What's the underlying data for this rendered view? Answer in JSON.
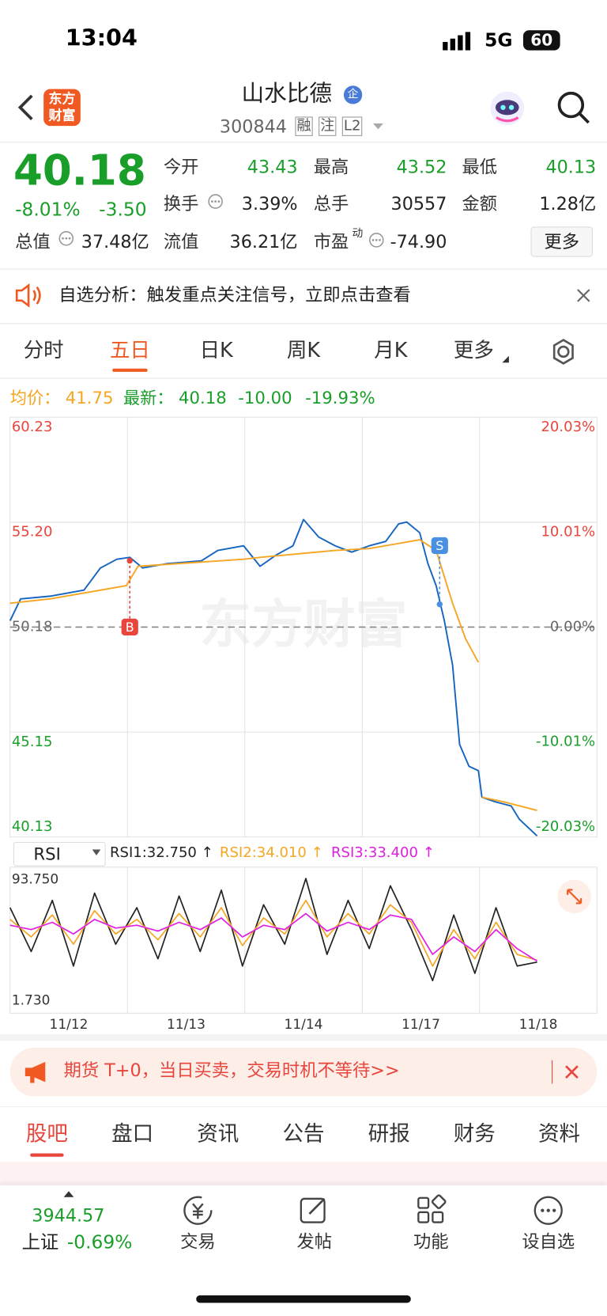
{
  "status_bar": {
    "time": "13:04",
    "network": "5G",
    "battery": "60"
  },
  "header": {
    "logo": "东方财富",
    "title": "山水比德",
    "badge": "企",
    "code": "300844",
    "tags": [
      "融",
      "注",
      "L2"
    ]
  },
  "quote": {
    "price": "40.18",
    "change_pct": "-8.01%",
    "change": "-3.50",
    "open": {
      "label": "今开",
      "value": "43.43"
    },
    "high": {
      "label": "最高",
      "value": "43.52"
    },
    "low": {
      "label": "最低",
      "value": "40.13"
    },
    "turnover": {
      "label": "换手",
      "value": "3.39%"
    },
    "volume": {
      "label": "总手",
      "value": "30557"
    },
    "amount": {
      "label": "金额",
      "value": "1.28亿"
    },
    "market_cap": {
      "label": "总值",
      "value": "37.48亿"
    },
    "float_cap": {
      "label": "流值",
      "value": "36.21亿"
    },
    "pe": {
      "label": "市盈",
      "sup": "动",
      "value": "-74.90"
    },
    "more": "更多"
  },
  "notice": {
    "text": "自选分析：触发重点关注信号，立即点击查看"
  },
  "tabs": [
    "分时",
    "五日",
    "日K",
    "周K",
    "月K",
    "更多"
  ],
  "summary": {
    "avg_label": "均价：",
    "avg": "41.75",
    "latest_label": "最新：",
    "latest": "40.18",
    "change": "-10.00",
    "change_pct": "-19.93%"
  },
  "watermark": "东方财富",
  "chart_data": [
    {
      "type": "line",
      "xlim": [
        0,
        5
      ],
      "ylim": [
        40.13,
        60.23
      ],
      "yticks": [
        60.23,
        {
          "value": 55.2,
          "label": "55.20"
        },
        50.18,
        45.15,
        40.13
      ],
      "y2lim": [
        -20.03,
        20.03
      ],
      "y2ticks": [
        {
          "value": 20.03,
          "label": "20.03%"
        },
        {
          "value": 10.01,
          "label": "10.01%"
        },
        {
          "value": 0,
          "label": "0.00%"
        },
        {
          "value": -10.01,
          "label": "-10.01%"
        },
        {
          "value": -20.03,
          "label": "-20.03%"
        }
      ],
      "series": [
        {
          "color": "#1565c0",
          "x": [
            0,
            0.09,
            0.34,
            0.63,
            0.77,
            0.91,
            1.02,
            1.13,
            1.34,
            1.63,
            1.77,
            1.99,
            2.13,
            2.27,
            2.41,
            2.5,
            2.63,
            2.77,
            2.91,
            3.06,
            3.2,
            3.31,
            3.38,
            3.49,
            3.56,
            3.63,
            3.7,
            3.77,
            3.83,
            3.91,
            3.99,
            4.02,
            4.13,
            4.27,
            4.34,
            4.49
          ],
          "values": [
            50.48,
            51.53,
            51.66,
            51.95,
            53.01,
            53.43,
            53.52,
            53.01,
            53.22,
            53.35,
            53.85,
            54.07,
            53.09,
            53.64,
            54.07,
            55.33,
            54.49,
            54.07,
            53.77,
            54.07,
            54.28,
            55.12,
            55.21,
            54.7,
            53.22,
            52.16,
            50.48,
            48.36,
            44.56,
            43.51,
            43.3,
            42.03,
            41.82,
            41.61,
            40.97,
            40.18
          ]
        },
        {
          "color": "#f5a623",
          "x": [
            0,
            0.34,
            0.99,
            1.09,
            1.99,
            2.13,
            2.77,
            3.06,
            3.49,
            3.63,
            3.77,
            3.88,
            3.99,
            4,
            4.02,
            4.2,
            4.49
          ],
          "values": [
            51.32,
            51.53,
            52.16,
            53.09,
            53.43,
            53.52,
            53.85,
            53.94,
            54.36,
            53.85,
            51.32,
            49.63,
            48.49,
            null,
            42.03,
            41.82,
            41.4
          ]
        }
      ],
      "annotations": [
        {
          "text": "B",
          "x": 1.02,
          "y": 53.36,
          "label_y": 50.18
        },
        {
          "text": "S",
          "x": 3.66,
          "y": 51.27,
          "label_y": 54.08
        }
      ]
    },
    {
      "type": "line",
      "xlim": [
        0,
        5
      ],
      "ylim": [
        1.73,
        93.75
      ],
      "yticks": [
        {
          "value": 93.75,
          "label": "93.750"
        },
        {
          "value": 1.73,
          "label": "1.730"
        }
      ],
      "xticks": [
        {
          "value": 0.5,
          "label": "11/12"
        },
        {
          "value": 1.5,
          "label": "11/13"
        },
        {
          "value": 2.5,
          "label": "11/14"
        },
        {
          "value": 3.5,
          "label": "11/17"
        },
        {
          "value": 4.5,
          "label": "11/18"
        }
      ],
      "x": [
        0,
        0.18,
        0.36,
        0.54,
        0.72,
        0.9,
        1.08,
        1.26,
        1.44,
        1.62,
        1.8,
        1.98,
        2.16,
        2.34,
        2.52,
        2.7,
        2.88,
        3.06,
        3.24,
        3.42,
        3.6,
        3.78,
        3.96,
        4.14,
        4.32,
        4.49
      ],
      "series": [
        {
          "name": "RSI1:32.750 ↑",
          "color": "#222222",
          "values": [
            70,
            40,
            75,
            30,
            80,
            45,
            70,
            35,
            78,
            40,
            82,
            30,
            72,
            45,
            90,
            38,
            75,
            42,
            85,
            55,
            20,
            65,
            25,
            70,
            30,
            32.75
          ]
        },
        {
          "name": "RSI2:34.010 ↑",
          "color": "#f5a623",
          "values": [
            62,
            50,
            65,
            45,
            68,
            52,
            62,
            48,
            66,
            50,
            70,
            44,
            63,
            52,
            75,
            50,
            66,
            52,
            72,
            60,
            30,
            55,
            35,
            60,
            38,
            34.01
          ]
        },
        {
          "name": "RSI3:33.400 ↑",
          "color": "#e020e0",
          "values": [
            58,
            55,
            60,
            52,
            62,
            56,
            58,
            54,
            60,
            55,
            63,
            50,
            58,
            55,
            66,
            54,
            60,
            55,
            65,
            62,
            38,
            50,
            40,
            55,
            42,
            33.4
          ]
        }
      ]
    }
  ],
  "rsi_selector": "RSI",
  "banner": {
    "text": "期货 T+0，当日买卖，交易时机不等待>>"
  },
  "bottom_tabs": [
    "股吧",
    "盘口",
    "资讯",
    "公告",
    "研报",
    "财务",
    "资料"
  ],
  "nav": {
    "index_value": "3944.57",
    "index_name": "上证",
    "index_change": "-0.69%",
    "items": [
      "交易",
      "发帖",
      "功能",
      "设自选"
    ]
  }
}
